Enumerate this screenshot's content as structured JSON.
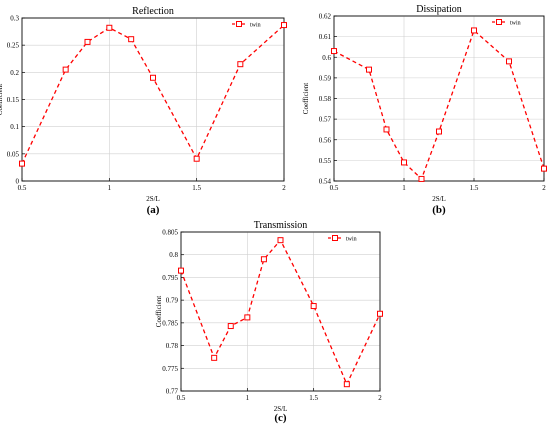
{
  "chart_data": [
    {
      "type": "line",
      "panel_label": "(a)",
      "title": "Reflection",
      "xlabel": "2S/L",
      "ylabel": "Coefficient",
      "legend": [
        "twin"
      ],
      "legend_position": "top-right",
      "grid": true,
      "xlim": [
        0.5,
        2
      ],
      "ylim": [
        0,
        0.3
      ],
      "x_ticks": [
        "0.5",
        "1",
        "1.5",
        "2"
      ],
      "y_ticks": [
        "0",
        "0.05",
        "0.1",
        "0.15",
        "0.2",
        "0.25",
        "0.3"
      ],
      "series": [
        {
          "name": "twin",
          "color": "#ff0000",
          "x": [
            0.5,
            0.75,
            0.875,
            1.0,
            1.125,
            1.25,
            1.5,
            1.75,
            2.0
          ],
          "y": [
            0.032,
            0.205,
            0.256,
            0.282,
            0.261,
            0.19,
            0.041,
            0.215,
            0.287
          ]
        }
      ]
    },
    {
      "type": "line",
      "panel_label": "(b)",
      "title": "Dissipation",
      "xlabel": "2S/L",
      "ylabel": "Coefficient",
      "legend": [
        "twin"
      ],
      "legend_position": "top-right",
      "grid": true,
      "xlim": [
        0.5,
        2
      ],
      "ylim": [
        0.54,
        0.62
      ],
      "x_ticks": [
        "0.5",
        "1",
        "1.5",
        "2"
      ],
      "y_ticks": [
        "0.54",
        "0.55",
        "0.56",
        "0.57",
        "0.58",
        "0.59",
        "0.6",
        "0.61",
        "0.62"
      ],
      "series": [
        {
          "name": "twin",
          "color": "#ff0000",
          "x": [
            0.5,
            0.75,
            0.875,
            1.0,
            1.125,
            1.25,
            1.5,
            1.75,
            2.0
          ],
          "y": [
            0.603,
            0.594,
            0.565,
            0.549,
            0.541,
            0.564,
            0.613,
            0.598,
            0.546
          ]
        }
      ]
    },
    {
      "type": "line",
      "panel_label": "(c)",
      "title": "Transmission",
      "xlabel": "2S/L",
      "ylabel": "Coefficient",
      "legend": [
        "twin"
      ],
      "legend_position": "top-right",
      "grid": true,
      "xlim": [
        0.5,
        2
      ],
      "ylim": [
        0.77,
        0.805
      ],
      "x_ticks": [
        "0.5",
        "1",
        "1.5",
        "2"
      ],
      "y_ticks": [
        "0.77",
        "0.775",
        "0.78",
        "0.785",
        "0.79",
        "0.795",
        "0.8",
        "0.805"
      ],
      "series": [
        {
          "name": "twin",
          "color": "#ff0000",
          "x": [
            0.5,
            0.75,
            0.875,
            1.0,
            1.125,
            1.25,
            1.5,
            1.75,
            2.0
          ],
          "y": [
            0.7965,
            0.7773,
            0.7843,
            0.7862,
            0.799,
            0.8032,
            0.7887,
            0.7715,
            0.787
          ]
        }
      ]
    }
  ]
}
